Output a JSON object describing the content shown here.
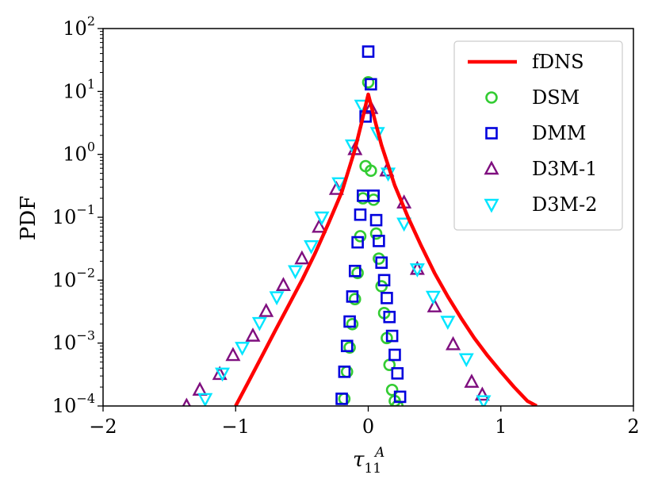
{
  "chart_data": {
    "type": "line",
    "xlabel": "τ",
    "xlabel_sub": "11",
    "xlabel_sup": "A",
    "ylabel": "PDF",
    "xlim": [
      -2,
      2
    ],
    "ylim": [
      0.0001,
      100
    ],
    "yscale": "log",
    "xticks": [
      -2,
      -1,
      0,
      1,
      2
    ],
    "xtick_labels": [
      "−2",
      "−1",
      "0",
      "1",
      "2"
    ],
    "yticks": [
      {
        "value": 0.0001,
        "base": "10",
        "exp": "−4"
      },
      {
        "value": 0.001,
        "base": "10",
        "exp": "−3"
      },
      {
        "value": 0.01,
        "base": "10",
        "exp": "−2"
      },
      {
        "value": 0.1,
        "base": "10",
        "exp": "−1"
      },
      {
        "value": 1,
        "base": "10",
        "exp": "0"
      },
      {
        "value": 10,
        "base": "10",
        "exp": "1"
      },
      {
        "value": 100,
        "base": "10",
        "exp": "2"
      }
    ],
    "grid": false,
    "legend_position": "top-right",
    "series": [
      {
        "name": "fDNS",
        "kind": "line",
        "color": "#ff0000",
        "x": [
          -1.0,
          -0.9,
          -0.8,
          -0.7,
          -0.6,
          -0.5,
          -0.4,
          -0.3,
          -0.2,
          -0.1,
          -0.05,
          0.0,
          0.05,
          0.1,
          0.2,
          0.3,
          0.4,
          0.5,
          0.6,
          0.7,
          0.8,
          0.9,
          1.0,
          1.1,
          1.2,
          1.27
        ],
        "y": [
          0.0001,
          0.00025,
          0.00063,
          0.0016,
          0.004,
          0.01,
          0.027,
          0.08,
          0.25,
          1.2,
          3.2,
          9.0,
          3.5,
          1.4,
          0.32,
          0.1,
          0.035,
          0.013,
          0.0055,
          0.0025,
          0.0012,
          0.00063,
          0.00035,
          0.0002,
          0.00012,
          0.0001
        ]
      },
      {
        "name": "DSM",
        "kind": "marker",
        "marker": "circle",
        "color": "#33cc33",
        "x": [
          -0.18,
          -0.16,
          -0.14,
          -0.12,
          -0.1,
          -0.08,
          -0.06,
          -0.04,
          -0.02,
          0.0,
          0.02,
          0.04,
          0.06,
          0.08,
          0.1,
          0.12,
          0.14,
          0.16,
          0.18,
          0.2,
          0.22
        ],
        "y": [
          0.00013,
          0.00035,
          0.00085,
          0.002,
          0.005,
          0.013,
          0.05,
          0.2,
          0.65,
          14.0,
          0.55,
          0.19,
          0.055,
          0.022,
          0.008,
          0.003,
          0.0012,
          0.00045,
          0.00018,
          0.00012,
          0.0001
        ]
      },
      {
        "name": "DMM",
        "kind": "marker",
        "marker": "square",
        "color": "#0000dd",
        "x": [
          -0.2,
          -0.18,
          -0.16,
          -0.14,
          -0.12,
          -0.1,
          -0.08,
          -0.06,
          -0.04,
          -0.02,
          0.0,
          0.02,
          0.04,
          0.06,
          0.08,
          0.1,
          0.12,
          0.14,
          0.16,
          0.18,
          0.2,
          0.22,
          0.24
        ],
        "y": [
          0.00013,
          0.00035,
          0.0009,
          0.0022,
          0.0055,
          0.014,
          0.04,
          0.11,
          0.22,
          4.0,
          43.0,
          13.0,
          0.22,
          0.09,
          0.042,
          0.019,
          0.01,
          0.0052,
          0.0026,
          0.0013,
          0.00065,
          0.00033,
          0.00014
        ]
      },
      {
        "name": "D3M-1",
        "kind": "marker",
        "marker": "triangle-up",
        "color": "#7f0f7f",
        "x": [
          -1.37,
          -1.27,
          -1.12,
          -1.02,
          -0.87,
          -0.77,
          -0.64,
          -0.5,
          -0.37,
          -0.24,
          -0.1,
          0.02,
          0.14,
          0.27,
          0.37,
          0.5,
          0.64,
          0.78,
          0.86
        ],
        "y": [
          0.0001,
          0.00018,
          0.00032,
          0.00064,
          0.0013,
          0.0032,
          0.0083,
          0.022,
          0.07,
          0.28,
          1.2,
          5.4,
          0.55,
          0.17,
          0.015,
          0.0038,
          0.00095,
          0.00024,
          0.00015
        ]
      },
      {
        "name": "D3M-2",
        "kind": "marker",
        "marker": "triangle-down",
        "color": "#00e5ff",
        "x": [
          -1.23,
          -1.1,
          -0.95,
          -0.82,
          -0.69,
          -0.55,
          -0.43,
          -0.35,
          -0.22,
          -0.12,
          -0.05,
          0.07,
          0.15,
          0.27,
          0.37,
          0.49,
          0.6,
          0.74,
          0.87
        ],
        "y": [
          0.00013,
          0.00033,
          0.00085,
          0.0021,
          0.0054,
          0.014,
          0.035,
          0.1,
          0.35,
          1.4,
          6.0,
          2.2,
          0.5,
          0.08,
          0.015,
          0.0055,
          0.0022,
          0.00056,
          0.00012
        ]
      }
    ]
  }
}
